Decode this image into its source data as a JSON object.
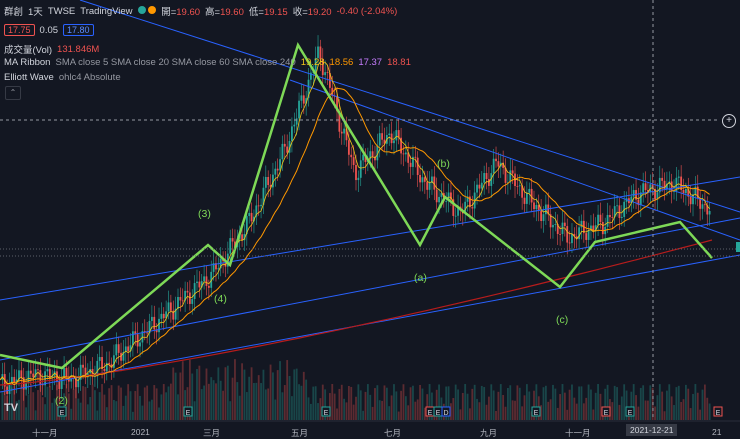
{
  "header": {
    "symbol": "群創",
    "interval": "1天",
    "exchange": "TWSE",
    "source": "TradingView",
    "o_label": "開=",
    "o": "19.60",
    "h_label": "高=",
    "h": "19.60",
    "l_label": "低=",
    "l": "19.15",
    "c_label": "收=",
    "c": "19.20",
    "change": "-0.40 (-2.04%)",
    "bid": "17.75",
    "spread": "0.05",
    "ask": "17.80"
  },
  "indicators": {
    "vol_name": "成交量(Vol)",
    "vol_value": "131.846M",
    "ma_name": "MA Ribbon",
    "ma_params": "SMA close 5 SMA close 20 SMA close 60 SMA close 240",
    "ma_values": [
      "19.28",
      "18.56",
      "17.37",
      "18.81"
    ],
    "ew_name": "Elliott Wave",
    "ew_params": "ohlc4 Absolute"
  },
  "colors": {
    "bg": "#131722",
    "up": "#26a69a",
    "down": "#ef5350",
    "wave": "#7ed957",
    "trend": "#2962ff",
    "ma5": "#f0c419",
    "ma20": "#ff9800",
    "ma240": "#b71c1c"
  },
  "chart_data": {
    "type": "candlestick",
    "x": [
      "十一月",
      "2021",
      "三月",
      "五月",
      "七月",
      "九月",
      "十一月",
      "2021-12-21",
      "21"
    ],
    "wave_labels": [
      "(2)",
      "(3)",
      "(4)",
      "(a)",
      "(b)",
      "(c)"
    ],
    "events": [
      "E",
      "E",
      "E",
      "E",
      "E",
      "D",
      "E",
      "E",
      "E",
      "E"
    ],
    "closes_approx": [
      10.5,
      11.0,
      10.8,
      11.5,
      13.0,
      14.5,
      16.0,
      18.5,
      22.0,
      27.0,
      21.0,
      23.0,
      20.5,
      19.0,
      21.5,
      19.5,
      17.8,
      18.5,
      20.0,
      20.5,
      19.2
    ]
  },
  "x_axis": {
    "ticks": [
      "十一月",
      "2021",
      "三月",
      "五月",
      "七月",
      "九月",
      "十一月",
      "21"
    ],
    "crosshair": "2021-12-21"
  }
}
